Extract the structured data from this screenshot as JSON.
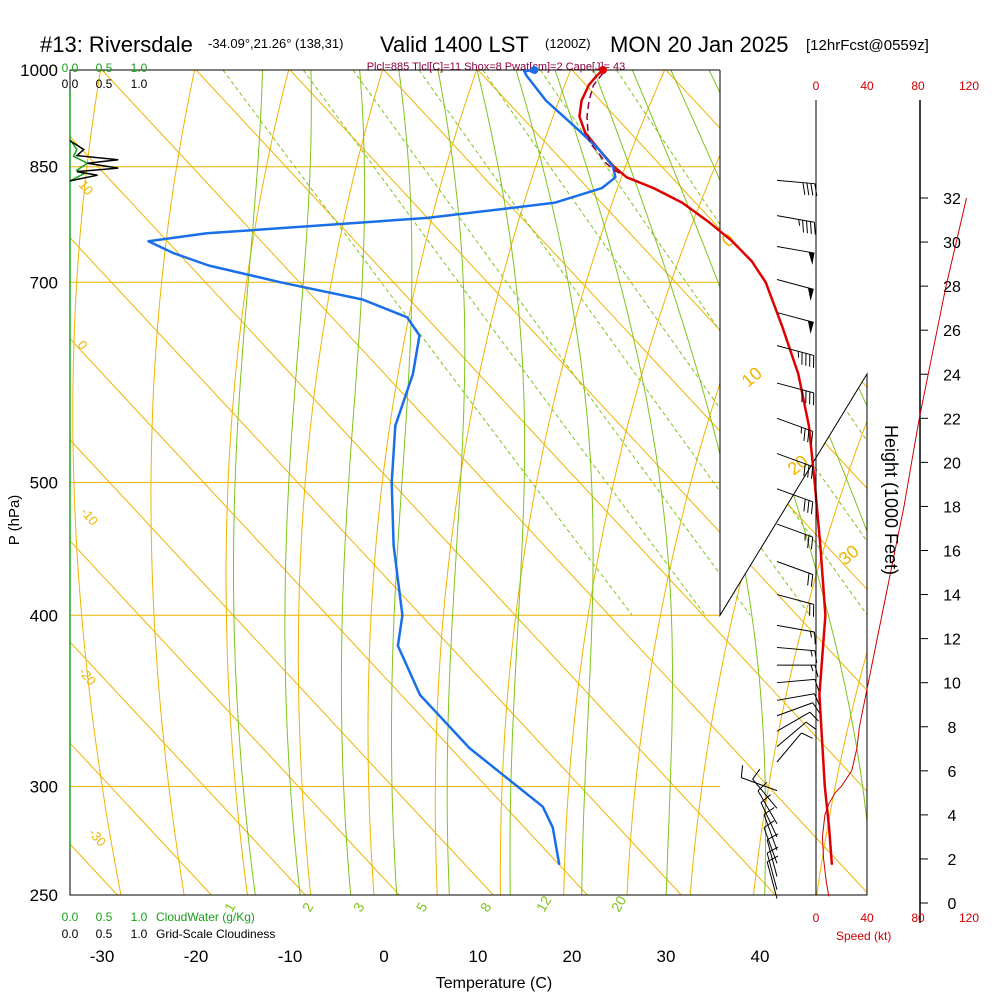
{
  "header": {
    "station": "#13: Riversdale",
    "coords": "-34.09°,21.26° (138,31)",
    "valid": "Valid 1400 LST",
    "utc": "(1200Z)",
    "date": "MON 20 Jan 2025",
    "forecast": "[12hrFcst@0559z]",
    "indices": "Plcl=885 Tlcl[C]=11 Shox=8 Pwat[cm]=2 Cape[J]= 43"
  },
  "colors": {
    "isotherm": "#f0b400",
    "dry_adiabat": "#f0b400",
    "moist_adiabat": "#7fc31c",
    "mixing_ratio": "#7fc31c",
    "temperature": "#e00000",
    "dewpoint": "#1a6fe8",
    "parcel": "#8b0040",
    "height": "#cc0000",
    "cloud_water": "#1aa01a",
    "cloudiness": "#000000",
    "index_text": "#8b0040"
  },
  "labels": {
    "pressure_axis": "P (hPa)",
    "temperature_axis": "Temperature (C)",
    "height_axis": "Height (1000 Feet)",
    "speed_axis": "Speed (kt)",
    "cloud_water": "CloudWater (g/Kg)",
    "cloudiness": "Grid-Scale Cloudiness"
  },
  "chart_data": {
    "type": "line",
    "diagram": "skew-T log-P",
    "x_axis": {
      "label": "Temperature (C)",
      "ticks": [
        -30,
        -20,
        -10,
        0,
        10,
        20,
        30,
        40
      ]
    },
    "y_axis": {
      "label": "P (hPa)",
      "scale": "log",
      "ticks": [
        250,
        300,
        400,
        500,
        700,
        850,
        1000
      ]
    },
    "height_axis": {
      "label": "Height (1000 Feet)",
      "ticks": [
        0,
        2,
        4,
        6,
        8,
        10,
        12,
        14,
        16,
        18,
        20,
        22,
        24,
        26,
        28,
        30,
        32
      ]
    },
    "speed_axis": {
      "label": "Speed (kt)",
      "ticks": [
        "0",
        "40",
        "80",
        "120"
      ]
    },
    "cloud_axis": {
      "ticks": [
        "0.0",
        "0.5",
        "1.0"
      ]
    },
    "dry_adiabat_labels": [
      "10",
      "0",
      "-10",
      "-20",
      "-30"
    ],
    "moist_adiabat_labels": [
      "0",
      "10",
      "20",
      "30"
    ],
    "mixing_ratio_labels": [
      "1",
      "2",
      "3",
      "5",
      "8",
      "12",
      "20"
    ],
    "series": [
      {
        "name": "Temperature",
        "points": [
          [
            1000,
            23.3
          ],
          [
            990,
            22.0
          ],
          [
            975,
            20.3
          ],
          [
            950,
            18.0
          ],
          [
            925,
            16.2
          ],
          [
            900,
            15.2
          ],
          [
            875,
            15.0
          ],
          [
            850,
            14.9
          ],
          [
            835,
            15.2
          ],
          [
            820,
            17.0
          ],
          [
            800,
            18.6
          ],
          [
            775,
            19.5
          ],
          [
            750,
            20.1
          ],
          [
            725,
            20.2
          ],
          [
            700,
            19.6
          ],
          [
            650,
            17.0
          ],
          [
            600,
            14.0
          ],
          [
            550,
            10.0
          ],
          [
            500,
            5.0
          ],
          [
            450,
            -0.6
          ],
          [
            400,
            -7.0
          ],
          [
            350,
            -15.5
          ],
          [
            300,
            -24.0
          ],
          [
            280,
            -27.6
          ],
          [
            263,
            -31.0
          ]
        ]
      },
      {
        "name": "Dewpoint",
        "points": [
          [
            1000,
            16.0
          ],
          [
            998,
            14.8
          ],
          [
            990,
            14.6
          ],
          [
            950,
            14.2
          ],
          [
            925,
            14.5
          ],
          [
            900,
            14.8
          ],
          [
            875,
            15.0
          ],
          [
            850,
            14.8
          ],
          [
            835,
            14.0
          ],
          [
            820,
            11.5
          ],
          [
            800,
            5.0
          ],
          [
            780,
            -10.0
          ],
          [
            760,
            -35.0
          ],
          [
            750,
            -42.0
          ],
          [
            735,
            -40.5
          ],
          [
            720,
            -38.0
          ],
          [
            700,
            -32.0
          ],
          [
            680,
            -25.0
          ],
          [
            660,
            -22.0
          ],
          [
            640,
            -22.5
          ],
          [
            600,
            -27.0
          ],
          [
            550,
            -34.0
          ],
          [
            500,
            -40.0
          ],
          [
            450,
            -46.0
          ],
          [
            400,
            -52.0
          ],
          [
            380,
            -55.5
          ],
          [
            350,
            -58.0
          ],
          [
            320,
            -58.0
          ],
          [
            290,
            -56.0
          ],
          [
            280,
            -57.0
          ],
          [
            263,
            -60.0
          ]
        ]
      },
      {
        "name": "Parcel",
        "points": [
          [
            995,
            23.0
          ],
          [
            975,
            20.8
          ],
          [
            950,
            18.8
          ],
          [
            925,
            17.0
          ],
          [
            900,
            15.5
          ],
          [
            885,
            14.7
          ],
          [
            870,
            14.6
          ],
          [
            855,
            14.4
          ],
          [
            845,
            14.6
          ],
          [
            838,
            15.0
          ]
        ]
      }
    ],
    "surface_marks": {
      "temperature": 23.3,
      "dewpoint": 16.0
    },
    "height_profile": [
      [
        32.0,
        118
      ],
      [
        30.0,
        110
      ],
      [
        28.0,
        102
      ],
      [
        26.0,
        95
      ],
      [
        24.0,
        88
      ],
      [
        22.0,
        81
      ],
      [
        20.0,
        75
      ],
      [
        18.0,
        69
      ],
      [
        16.0,
        62
      ],
      [
        14.0,
        55
      ],
      [
        12.0,
        48
      ],
      [
        10.0,
        41
      ],
      [
        8.0,
        34
      ],
      [
        7.0,
        32
      ],
      [
        6.0,
        28
      ],
      [
        5.3,
        20
      ],
      [
        5.0,
        15
      ],
      [
        4.5,
        10
      ],
      [
        4.0,
        7
      ],
      [
        3.0,
        5
      ],
      [
        2.0,
        6
      ],
      [
        1.0,
        8
      ],
      [
        0.3,
        10
      ]
    ],
    "wind_barbs": [
      {
        "h": 32.8,
        "dir": 275,
        "kt": 40
      },
      {
        "h": 31.2,
        "dir": 280,
        "kt": 45
      },
      {
        "h": 29.8,
        "dir": 280,
        "kt": 50
      },
      {
        "h": 28.3,
        "dir": 285,
        "kt": 50
      },
      {
        "h": 26.8,
        "dir": 285,
        "kt": 50
      },
      {
        "h": 25.3,
        "dir": 285,
        "kt": 45
      },
      {
        "h": 23.6,
        "dir": 285,
        "kt": 40
      },
      {
        "h": 22.0,
        "dir": 290,
        "kt": 35
      },
      {
        "h": 20.4,
        "dir": 290,
        "kt": 30
      },
      {
        "h": 18.8,
        "dir": 290,
        "kt": 30
      },
      {
        "h": 17.2,
        "dir": 290,
        "kt": 25
      },
      {
        "h": 15.5,
        "dir": 290,
        "kt": 20
      },
      {
        "h": 14.0,
        "dir": 285,
        "kt": 20
      },
      {
        "h": 12.6,
        "dir": 280,
        "kt": 15
      },
      {
        "h": 11.6,
        "dir": 275,
        "kt": 15
      },
      {
        "h": 10.8,
        "dir": 270,
        "kt": 15
      },
      {
        "h": 10.0,
        "dir": 265,
        "kt": 10
      },
      {
        "h": 9.2,
        "dir": 260,
        "kt": 10
      },
      {
        "h": 8.5,
        "dir": 250,
        "kt": 10
      },
      {
        "h": 7.8,
        "dir": 240,
        "kt": 10
      },
      {
        "h": 7.1,
        "dir": 230,
        "kt": 10
      },
      {
        "h": 6.4,
        "dir": 220,
        "kt": 10
      },
      {
        "h": 5.1,
        "dir": 110,
        "kt": 10
      },
      {
        "h": 4.3,
        "dir": 140,
        "kt": 10
      },
      {
        "h": 3.6,
        "dir": 150,
        "kt": 10
      },
      {
        "h": 3.0,
        "dir": 155,
        "kt": 10
      },
      {
        "h": 2.4,
        "dir": 160,
        "kt": 10
      },
      {
        "h": 1.8,
        "dir": 160,
        "kt": 10
      },
      {
        "h": 1.2,
        "dir": 165,
        "kt": 10
      },
      {
        "h": 0.6,
        "dir": 165,
        "kt": 10
      },
      {
        "h": 0.2,
        "dir": 165,
        "kt": 10
      }
    ],
    "cloud_water_profile": [
      [
        830,
        0.0
      ],
      [
        840,
        0.2
      ],
      [
        845,
        0.1
      ],
      [
        855,
        0.25
      ],
      [
        865,
        0.05
      ],
      [
        875,
        0.1
      ],
      [
        890,
        0.0
      ]
    ],
    "cloudiness_profile": [
      [
        830,
        0.0
      ],
      [
        838,
        0.4
      ],
      [
        843,
        0.1
      ],
      [
        848,
        0.7
      ],
      [
        855,
        0.25
      ],
      [
        860,
        0.7
      ],
      [
        866,
        0.1
      ],
      [
        875,
        0.2
      ],
      [
        888,
        0.0
      ]
    ]
  }
}
